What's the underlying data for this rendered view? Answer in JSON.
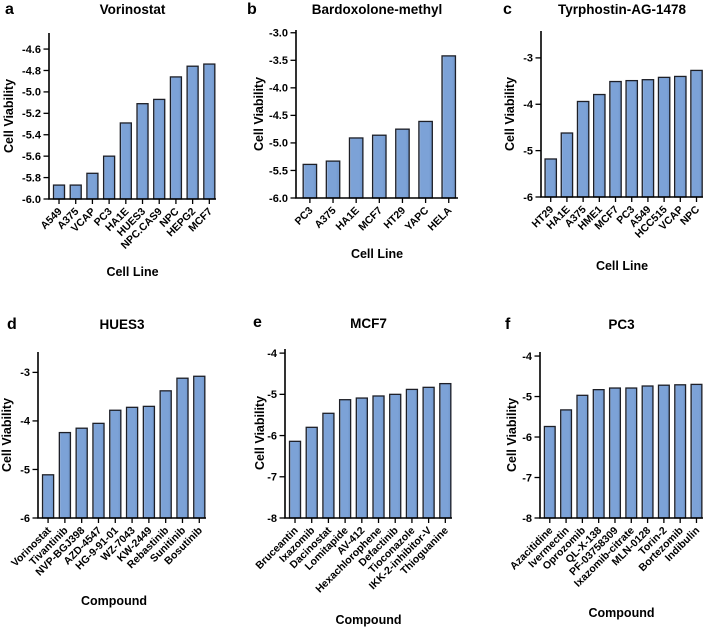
{
  "figure": {
    "colors": {
      "bar_fill": "#7ca2d7",
      "bar_fill_light": "#b6c4d8",
      "bar_fill_dark": "#7096cb",
      "bar_stroke": "#1d1f27",
      "axis": "#000000",
      "text": "#000000",
      "background": "#ffffff"
    }
  },
  "chart_data": [
    {
      "type": "bar",
      "panel_label": "a",
      "title": "Vorinostat",
      "xlabel": "Cell Line",
      "ylabel": "Cell Viability",
      "categories": [
        "A549",
        "A375",
        "VCAP",
        "PC3",
        "HA1E",
        "HUES3",
        "NPC.CAS9",
        "NPC",
        "HEPG2",
        "MCF7"
      ],
      "values": [
        -5.87,
        -5.87,
        -5.76,
        -5.6,
        -5.29,
        -5.11,
        -5.07,
        -4.86,
        -4.76,
        -4.74
      ],
      "yticks": [
        -4.6,
        -4.8,
        -5.0,
        -5.2,
        -5.4,
        -5.6,
        -5.8,
        -6.0
      ],
      "ytick_labels": [
        "-4.6",
        "-4.8",
        "-5.0",
        "-5.2",
        "-5.4",
        "-5.6",
        "-5.8",
        "-6.0"
      ],
      "ylim": [
        -6.0,
        -4.45
      ],
      "grid": false,
      "legend": null
    },
    {
      "type": "bar",
      "panel_label": "b",
      "title": "Bardoxolone-methyl",
      "xlabel": "Cell Line",
      "ylabel": "Cell Viability",
      "categories": [
        "PC3",
        "A375",
        "HA1E",
        "MCF7",
        "HT29",
        "YAPC",
        "HELA"
      ],
      "values": [
        -5.39,
        -5.33,
        -4.91,
        -4.86,
        -4.75,
        -4.61,
        -3.42
      ],
      "yticks": [
        -3.0,
        -3.5,
        -4.0,
        -4.5,
        -5.0,
        -5.5,
        -6.0
      ],
      "ytick_labels": [
        "-3.0",
        "-3.5",
        "-4.0",
        "-4.5",
        "-5.0",
        "-5.5",
        "-6.0"
      ],
      "ylim": [
        -6.0,
        -2.95
      ],
      "grid": false,
      "legend": null
    },
    {
      "type": "bar",
      "panel_label": "c",
      "title": "Tyrphostin-AG-1478",
      "xlabel": "Cell Line",
      "ylabel": "Cell Viability",
      "categories": [
        "HT29",
        "HA1E",
        "A375",
        "HME1",
        "MCF7",
        "PC3",
        "A549",
        "HCC515",
        "VCAP",
        "NPC"
      ],
      "values": [
        -5.18,
        -4.62,
        -3.94,
        -3.79,
        -3.51,
        -3.49,
        -3.47,
        -3.42,
        -3.4,
        -3.27
      ],
      "yticks": [
        -3,
        -4,
        -5,
        -6
      ],
      "ytick_labels": [
        "-3",
        "-4",
        "-5",
        "-6"
      ],
      "ylim": [
        -6.0,
        -2.42
      ],
      "grid": false,
      "legend": null
    },
    {
      "type": "bar",
      "panel_label": "d",
      "title": "HUES3",
      "xlabel": "Compound",
      "ylabel": "Cell Viability",
      "categories": [
        "Vorinostat",
        "Tivantinib",
        "NVP-BGJ398",
        "AZD-4547",
        "HG-9-91-01",
        "WZ-7043",
        "KW-2449",
        "Rebastinib",
        "Sunitinib",
        "Bosutinib"
      ],
      "values": [
        -5.11,
        -4.24,
        -4.15,
        -4.05,
        -3.78,
        -3.72,
        -3.7,
        -3.38,
        -3.12,
        -3.08
      ],
      "yticks": [
        -3,
        -4,
        -5,
        -6
      ],
      "ytick_labels": [
        "-3",
        "-4",
        "-5",
        "-6"
      ],
      "ylim": [
        -6.0,
        -2.58
      ],
      "grid": false,
      "legend": null
    },
    {
      "type": "bar",
      "panel_label": "e",
      "title": "MCF7",
      "xlabel": "Compound",
      "ylabel": "Cell Viability",
      "categories": [
        "Bruceantin",
        "Ixazomib",
        "Dacinostat",
        "Lomitapide",
        "AV-412",
        "Hexachlorophene",
        "Defactinib",
        "Tioconazole",
        "IKK-2-inhibitor-V",
        "Thioguanine"
      ],
      "values": [
        -6.14,
        -5.8,
        -5.46,
        -5.13,
        -5.09,
        -5.04,
        -5.0,
        -4.88,
        -4.83,
        -4.74
      ],
      "yticks": [
        -4,
        -5,
        -6,
        -7,
        -8
      ],
      "ytick_labels": [
        "-4",
        "-5",
        "-6",
        "-7",
        "-8"
      ],
      "ylim": [
        -8.0,
        -3.9
      ],
      "grid": false,
      "legend": null
    },
    {
      "type": "bar",
      "panel_label": "f",
      "title": "PC3",
      "xlabel": "Compound",
      "ylabel": "Cell Viability",
      "categories": [
        "Azacitidine",
        "Ivermectin",
        "Oprozomib",
        "QL-X-138",
        "PF-03758309",
        "Ixazomib-citrate",
        "MLN-0128",
        "Torin-2",
        "Bortezomib",
        "Indibulin"
      ],
      "values": [
        -5.74,
        -5.33,
        -4.97,
        -4.83,
        -4.79,
        -4.79,
        -4.74,
        -4.72,
        -4.71,
        -4.7
      ],
      "yticks": [
        -4,
        -5,
        -6,
        -7,
        -8
      ],
      "ytick_labels": [
        "-4",
        "-5",
        "-6",
        "-7",
        "-8"
      ],
      "ylim": [
        -8.0,
        -3.9
      ],
      "grid": false,
      "legend": null
    }
  ]
}
